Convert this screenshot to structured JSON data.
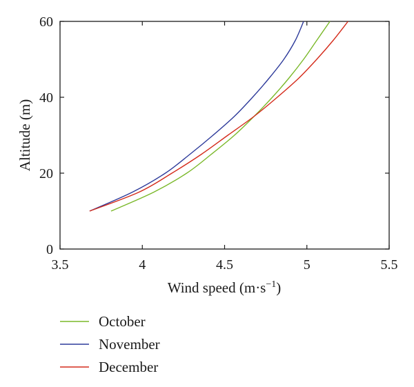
{
  "chart_data": {
    "type": "line",
    "xlabel": "Wind speed (m·s",
    "xlabel_superscript": "−1",
    "xlabel_suffix": ")",
    "ylabel": "Altitude (m)",
    "xlim": [
      3.5,
      5.5
    ],
    "ylim": [
      0,
      60
    ],
    "x_ticks": [
      3.5,
      4,
      4.5,
      5,
      5.5
    ],
    "x_tick_labels": [
      "3.5",
      "4",
      "4.5",
      "5",
      "5.5"
    ],
    "y_ticks": [
      0,
      20,
      40,
      60
    ],
    "y_tick_labels": [
      "0",
      "20",
      "40",
      "60"
    ],
    "grid": false,
    "legend_position": "below",
    "series": [
      {
        "name": "October",
        "color": "#7ab829",
        "points": [
          [
            3.81,
            10
          ],
          [
            4.07,
            15
          ],
          [
            4.27,
            20
          ],
          [
            4.42,
            25
          ],
          [
            4.56,
            30
          ],
          [
            4.68,
            35
          ],
          [
            4.79,
            40
          ],
          [
            4.89,
            45
          ],
          [
            4.98,
            50
          ],
          [
            5.06,
            55
          ],
          [
            5.14,
            60
          ]
        ]
      },
      {
        "name": "November",
        "color": "#2d3a9a",
        "points": [
          [
            3.68,
            10
          ],
          [
            3.94,
            15
          ],
          [
            4.14,
            20
          ],
          [
            4.29,
            25
          ],
          [
            4.43,
            30
          ],
          [
            4.56,
            35
          ],
          [
            4.67,
            40
          ],
          [
            4.77,
            45
          ],
          [
            4.86,
            50
          ],
          [
            4.93,
            55
          ],
          [
            4.98,
            60
          ]
        ]
      },
      {
        "name": "December",
        "color": "#d42a1a",
        "points": [
          [
            3.68,
            10
          ],
          [
            3.98,
            15
          ],
          [
            4.18,
            20
          ],
          [
            4.36,
            25
          ],
          [
            4.52,
            30
          ],
          [
            4.68,
            35
          ],
          [
            4.82,
            40
          ],
          [
            4.95,
            45
          ],
          [
            5.06,
            50
          ],
          [
            5.16,
            55
          ],
          [
            5.25,
            60
          ]
        ]
      }
    ]
  }
}
